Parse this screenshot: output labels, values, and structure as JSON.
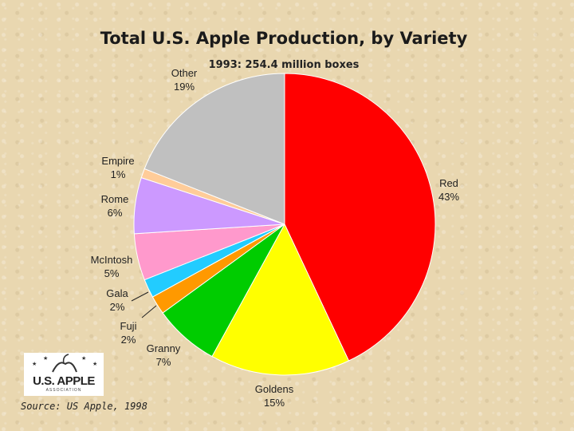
{
  "chart_data": {
    "type": "pie",
    "title": "Total U.S. Apple Production, by Variety",
    "subtitle": "1993:  254.4 million boxes",
    "slices": [
      {
        "name": "Red",
        "value": 43,
        "label": "43%",
        "color": "#ff0000"
      },
      {
        "name": "Goldens",
        "value": 15,
        "label": "15%",
        "color": "#ffff00"
      },
      {
        "name": "Granny",
        "value": 7,
        "label": "7%",
        "color": "#00cc00"
      },
      {
        "name": "Fuji",
        "value": 2,
        "label": "2%",
        "color": "#ff9900"
      },
      {
        "name": "Gala",
        "value": 2,
        "label": "2%",
        "color": "#22ccff"
      },
      {
        "name": "McIntosh",
        "value": 5,
        "label": "5%",
        "color": "#ff99cc"
      },
      {
        "name": "Rome",
        "value": 6,
        "label": "6%",
        "color": "#cc99ff"
      },
      {
        "name": "Empire",
        "value": 1,
        "label": "1%",
        "color": "#ffcc99"
      },
      {
        "name": "Other",
        "value": 19,
        "label": "19%",
        "color": "#c0c0c0"
      }
    ]
  },
  "logo": {
    "text": "U.S. APPLE",
    "subtext": "ASSOCIATION"
  },
  "source": "Source: US Apple, 1998"
}
